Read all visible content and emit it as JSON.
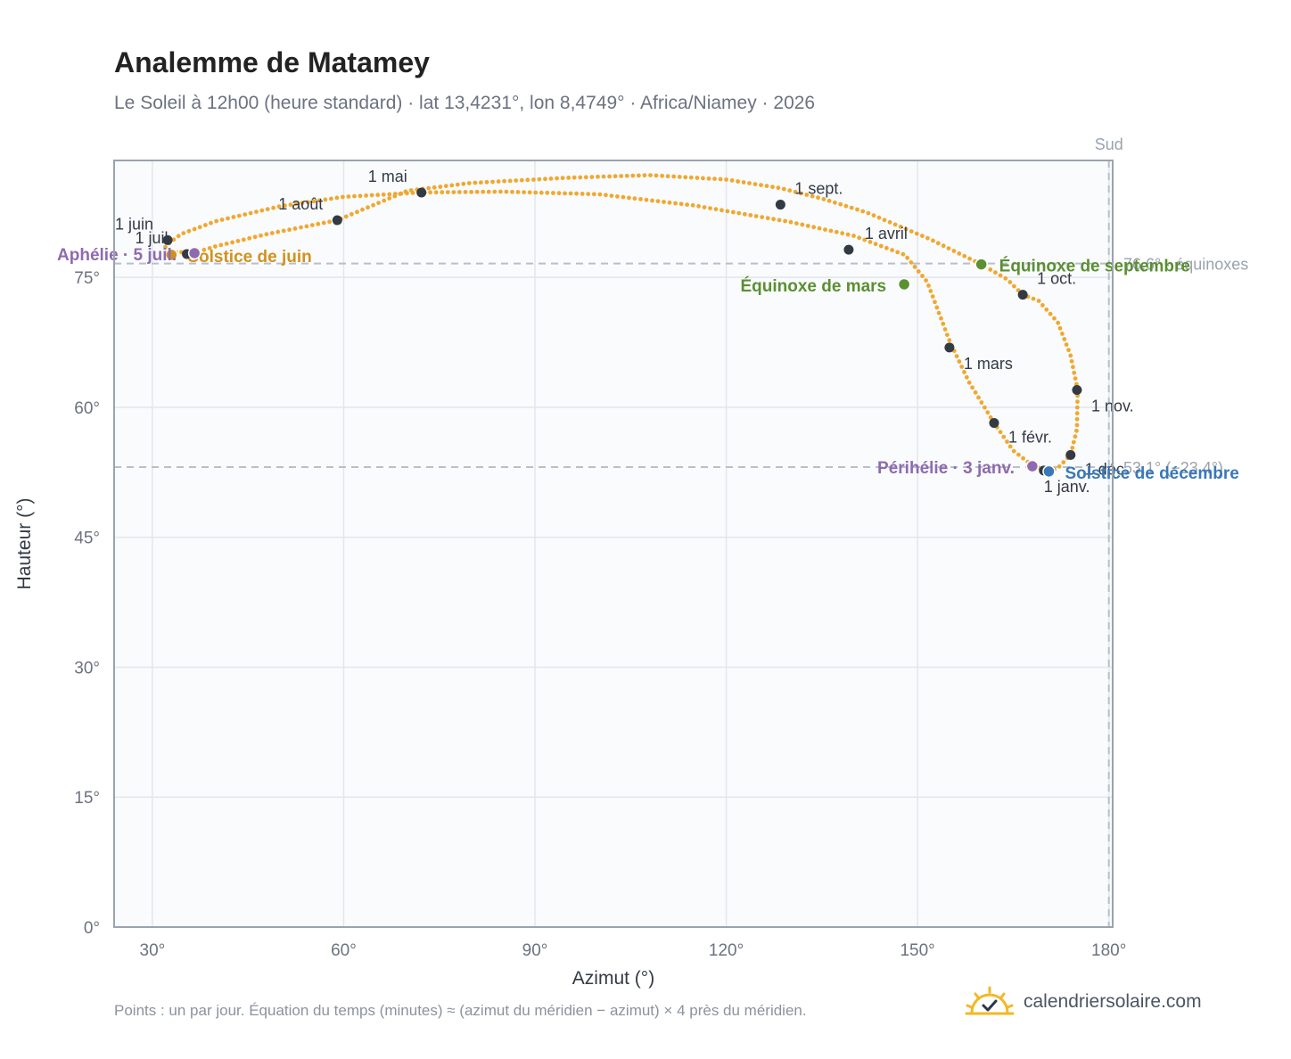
{
  "header": {
    "title": "Analemme de Matamey",
    "subtitle": "Le Soleil à 12h00 (heure standard) · lat 13,4231°, lon 8,4749° · Africa/Niamey · 2026"
  },
  "footer": {
    "note": "Points : un par jour. Équation du temps (minutes) ≈ (azimut du méridien − azimut) × 4 près du méridien.",
    "brand": "calendriersolaire.com"
  },
  "colors": {
    "curve": "#f0a830",
    "month_marker": "#333a44",
    "equinox": "#5a8f32",
    "solstice_june": "#d0921e",
    "solstice_december": "#3a78b8",
    "apsis": "#8e6bb0",
    "reference_line": "#b8bfc8",
    "plot_background": "#f9fbfd",
    "grid": "#e3e7ec",
    "frame": "#9aa3ae"
  },
  "icons": {
    "brand_logo": "sun-check-icon"
  },
  "chart_data": {
    "type": "scatter",
    "title": "Analemme de Matamey",
    "xlabel": "Azimut (°)",
    "ylabel": "Hauteur (°)",
    "xlim": [
      24,
      180.6
    ],
    "ylim": [
      0,
      88.5
    ],
    "xticks": [
      30,
      60,
      90,
      120,
      150,
      180
    ],
    "yticks": [
      0,
      15,
      30,
      45,
      60,
      75
    ],
    "x_tick_labels": [
      "30°",
      "60°",
      "90°",
      "120°",
      "150°",
      "180°"
    ],
    "y_tick_labels": [
      "0°",
      "15°",
      "30°",
      "45°",
      "60°",
      "75°"
    ],
    "grid": true,
    "south_line": {
      "azimuth": 180,
      "label": "Sud"
    },
    "reference_lines": [
      {
        "altitude": 76.6,
        "label": "76,6° · équinoxes"
      },
      {
        "altitude": 53.1,
        "label": "53,1° (−23,4°)"
      }
    ],
    "daily_path": [
      [
        170.6,
        52.6
      ],
      [
        172.0,
        53.0
      ],
      [
        174.0,
        54.5
      ],
      [
        175.0,
        57.5
      ],
      [
        175.1,
        62.0
      ],
      [
        174.0,
        66.0
      ],
      [
        172.0,
        69.8
      ],
      [
        169.0,
        72.3
      ],
      [
        166.5,
        73.0
      ],
      [
        164.0,
        74.8
      ],
      [
        160.0,
        76.5
      ],
      [
        152.0,
        79.4
      ],
      [
        142.0,
        82.5
      ],
      [
        135.0,
        84.1
      ],
      [
        128.5,
        85.3
      ],
      [
        120.0,
        86.3
      ],
      [
        108.0,
        86.8
      ],
      [
        95.0,
        86.5
      ],
      [
        80.0,
        85.9
      ],
      [
        70.0,
        85.0
      ],
      [
        59.0,
        81.6
      ],
      [
        48.0,
        80.0
      ],
      [
        40.0,
        78.6
      ],
      [
        36.0,
        77.7
      ],
      [
        34.0,
        78.0
      ],
      [
        32.5,
        77.5
      ],
      [
        32.0,
        78.6
      ],
      [
        34.5,
        80.0
      ],
      [
        40.0,
        81.5
      ],
      [
        50.0,
        83.2
      ],
      [
        60.0,
        84.3
      ],
      [
        72.0,
        84.8
      ],
      [
        85.0,
        84.9
      ],
      [
        100.0,
        84.6
      ],
      [
        115.0,
        83.3
      ],
      [
        130.0,
        81.4
      ],
      [
        140.0,
        79.8
      ],
      [
        148.0,
        77.6
      ],
      [
        151.5,
        74.5
      ],
      [
        155.0,
        67.7
      ],
      [
        158.0,
        63.0
      ],
      [
        162.0,
        58.2
      ],
      [
        165.0,
        55.0
      ],
      [
        168.0,
        53.3
      ],
      [
        170.6,
        52.6
      ]
    ],
    "month_markers": [
      {
        "label": "1 janv.",
        "azimuth": 169.8,
        "altitude": 52.7
      },
      {
        "label": "1 févr.",
        "azimuth": 162.0,
        "altitude": 58.2
      },
      {
        "label": "1 mars",
        "azimuth": 155.0,
        "altitude": 66.9
      },
      {
        "label": "1 avril",
        "azimuth": 139.2,
        "altitude": 78.2
      },
      {
        "label": "1 mai",
        "azimuth": 72.2,
        "altitude": 84.8
      },
      {
        "label": "1 juin",
        "azimuth": 32.4,
        "altitude": 79.3
      },
      {
        "label": "1 juil.",
        "azimuth": 35.4,
        "altitude": 77.7
      },
      {
        "label": "1 août",
        "azimuth": 59.0,
        "altitude": 81.6
      },
      {
        "label": "1 sept.",
        "azimuth": 128.5,
        "altitude": 83.4
      },
      {
        "label": "1 oct.",
        "azimuth": 166.5,
        "altitude": 73.0
      },
      {
        "label": "1 nov.",
        "azimuth": 175.0,
        "altitude": 62.0
      },
      {
        "label": "1 déc.",
        "azimuth": 174.0,
        "altitude": 54.5
      }
    ],
    "events": [
      {
        "label": "Équinoxe de mars",
        "azimuth": 147.9,
        "altitude": 74.2,
        "kind": "equinox"
      },
      {
        "label": "Équinoxe de septembre",
        "azimuth": 160.0,
        "altitude": 76.5,
        "kind": "equinox"
      },
      {
        "label": "Solstice de juin",
        "azimuth": 33.0,
        "altitude": 77.6,
        "kind": "solstice_june"
      },
      {
        "label": "Solstice de décembre",
        "azimuth": 170.6,
        "altitude": 52.6,
        "kind": "solstice_december"
      },
      {
        "label": "Aphélie · 5 juil.",
        "azimuth": 36.6,
        "altitude": 77.8,
        "kind": "apsis"
      },
      {
        "label": "Périhélie · 3 janv.",
        "azimuth": 168.0,
        "altitude": 53.2,
        "kind": "apsis"
      }
    ]
  }
}
